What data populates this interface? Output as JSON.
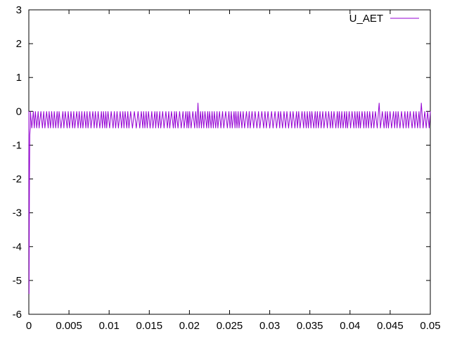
{
  "chart_data": {
    "type": "line",
    "title": "",
    "xlabel": "",
    "ylabel": "",
    "xlim": [
      0,
      0.05
    ],
    "ylim": [
      -6,
      3
    ],
    "x_ticks": [
      0,
      0.005,
      0.01,
      0.015,
      0.02,
      0.025,
      0.03,
      0.035,
      0.04,
      0.045,
      0.05
    ],
    "x_tick_labels": [
      "0",
      "0.005",
      "0.01",
      "0.015",
      "0.02",
      "0.025",
      "0.03",
      "0.035",
      "0.04",
      "0.045",
      "0.05"
    ],
    "y_ticks": [
      3,
      2,
      1,
      0,
      -1,
      -2,
      -3,
      -4,
      -5,
      -6
    ],
    "y_tick_labels": [
      "3",
      "2",
      "1",
      "0",
      "-1",
      "-2",
      "-3",
      "-4",
      "-5",
      "-6"
    ],
    "grid": false,
    "legend": {
      "position": "top-right"
    },
    "series": [
      {
        "name": "U_AET",
        "color": "#9400d3",
        "description_values": {
          "upper_level": 0,
          "lower_level": -0.5,
          "spike_high": 0.25,
          "spike_low": -0.75,
          "initial_min": -5.4
        },
        "x": [
          0,
          5e-05,
          0.0001,
          0.00015,
          0.0002,
          0.0003,
          0.0025,
          0.0034,
          0.006,
          0.0061,
          0.0126,
          0.0138,
          0.0172,
          0.0211,
          0.0262,
          0.0302,
          0.0303,
          0.0325,
          0.0417,
          0.0436,
          0.0489,
          0.05
        ],
        "y": [
          0,
          -5.4,
          -1.5,
          -0.5,
          0,
          -0.5,
          -0.75,
          0.25,
          -0.75,
          0.25,
          0.25,
          0.25,
          0.25,
          0.25,
          0.25,
          -0.75,
          -0.75,
          0.25,
          0.25,
          0.25,
          0.25,
          0
        ]
      }
    ]
  }
}
